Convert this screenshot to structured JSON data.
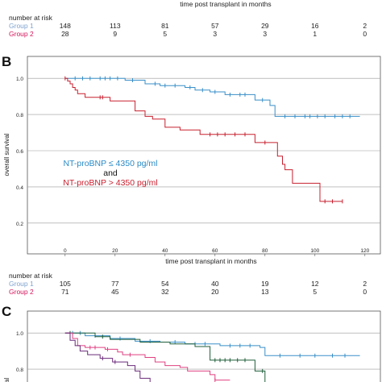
{
  "panel_top": {
    "xlabel": "time post transplant in months",
    "risk_title": "number at risk",
    "risk_rows": [
      {
        "label": "Group 1",
        "color": "#7fa3cf",
        "values": [
          "148",
          "113",
          "81",
          "57",
          "29",
          "16",
          "2"
        ]
      },
      {
        "label": "Group 2",
        "color": "#d4145a",
        "values": [
          "28",
          "9",
          "5",
          "3",
          "3",
          "1",
          "0"
        ]
      }
    ]
  },
  "panel_b": {
    "letter": "B",
    "ylabel": "overall survival",
    "legend_line1": "NT-proBNP ≤ 4350 pg/ml",
    "legend_and": "and",
    "legend_line2": "NT-proBNP > 4350 pg/ml",
    "xlabel": "time post transplant in months",
    "risk_title": "number at risk",
    "risk_rows": [
      {
        "label": "Group 1",
        "color": "#7fa3cf",
        "values": [
          "105",
          "77",
          "54",
          "40",
          "19",
          "12",
          "2"
        ]
      },
      {
        "label": "Group 2",
        "color": "#d4145a",
        "values": [
          "71",
          "45",
          "32",
          "20",
          "13",
          "5",
          "0"
        ]
      }
    ]
  },
  "panel_c": {
    "letter": "C",
    "ylabel": "al"
  },
  "chart_data": [
    {
      "type": "line",
      "title": "B",
      "xlabel": "time post transplant in months",
      "ylabel": "overall survival",
      "xlim": [
        -10,
        125
      ],
      "ylim": [
        0.15,
        1.05
      ],
      "xticks": [
        "0",
        "20",
        "40",
        "60",
        "80",
        "100",
        "120"
      ],
      "yticks": [
        "0.2",
        "0.4",
        "0.6",
        "0.8",
        "1.0"
      ],
      "grid": true,
      "series": [
        {
          "name": "NT-proBNP ≤ 4350 pg/ml",
          "color": "#3a8fc8",
          "steps": [
            [
              0,
              1.0
            ],
            [
              24,
              0.99
            ],
            [
              32,
              0.97
            ],
            [
              38,
              0.96
            ],
            [
              48,
              0.95
            ],
            [
              52,
              0.935
            ],
            [
              58,
              0.925
            ],
            [
              64,
              0.91
            ],
            [
              76,
              0.88
            ],
            [
              82,
              0.85
            ],
            [
              84,
              0.79
            ],
            [
              118,
              0.79
            ]
          ],
          "censors": [
            [
              4,
              1.0
            ],
            [
              7,
              1.0
            ],
            [
              10,
              1.0
            ],
            [
              14,
              1.0
            ],
            [
              16,
              1.0
            ],
            [
              18,
              1.0
            ],
            [
              21,
              1.0
            ],
            [
              27,
              0.99
            ],
            [
              36,
              0.97
            ],
            [
              40,
              0.96
            ],
            [
              44,
              0.96
            ],
            [
              50,
              0.95
            ],
            [
              55,
              0.935
            ],
            [
              60,
              0.925
            ],
            [
              66,
              0.91
            ],
            [
              70,
              0.91
            ],
            [
              72,
              0.91
            ],
            [
              79,
              0.88
            ],
            [
              88,
              0.79
            ],
            [
              92,
              0.79
            ],
            [
              96,
              0.79
            ],
            [
              98,
              0.79
            ],
            [
              101,
              0.79
            ],
            [
              104,
              0.79
            ],
            [
              108,
              0.79
            ],
            [
              111,
              0.79
            ],
            [
              114,
              0.79
            ]
          ]
        },
        {
          "name": "NT-proBNP > 4350 pg/ml",
          "color": "#c8202f",
          "steps": [
            [
              0,
              1.0
            ],
            [
              1,
              0.985
            ],
            [
              2,
              0.97
            ],
            [
              3,
              0.95
            ],
            [
              4,
              0.935
            ],
            [
              5,
              0.915
            ],
            [
              8,
              0.895
            ],
            [
              18,
              0.875
            ],
            [
              28,
              0.82
            ],
            [
              32,
              0.79
            ],
            [
              35,
              0.775
            ],
            [
              40,
              0.73
            ],
            [
              46,
              0.715
            ],
            [
              54,
              0.69
            ],
            [
              76,
              0.645
            ],
            [
              85,
              0.57
            ],
            [
              87,
              0.525
            ],
            [
              88,
              0.495
            ],
            [
              91,
              0.42
            ],
            [
              102,
              0.32
            ],
            [
              111,
              0.32
            ]
          ],
          "censors": [
            [
              0,
              1.0
            ],
            [
              14,
              0.895
            ],
            [
              15,
              0.895
            ],
            [
              58,
              0.69
            ],
            [
              61,
              0.69
            ],
            [
              64,
              0.69
            ],
            [
              68,
              0.69
            ],
            [
              72,
              0.69
            ],
            [
              80,
              0.645
            ],
            [
              104,
              0.32
            ],
            [
              107,
              0.32
            ],
            [
              111,
              0.32
            ]
          ]
        }
      ]
    },
    {
      "type": "line",
      "title": "C",
      "ylabel": "al",
      "xlim": [
        -10,
        125
      ],
      "ylim": [
        0.15,
        1.05
      ],
      "yticks": [
        "0.8",
        "1.0"
      ],
      "grid": true,
      "series": [
        {
          "color": "#3a8fc8",
          "steps": [
            [
              0,
              1.0
            ],
            [
              8,
              0.985
            ],
            [
              18,
              0.97
            ],
            [
              28,
              0.955
            ],
            [
              38,
              0.95
            ],
            [
              48,
              0.94
            ],
            [
              62,
              0.93
            ],
            [
              78,
              0.92
            ],
            [
              80,
              0.875
            ],
            [
              118,
              0.875
            ]
          ],
          "censors": [
            [
              3,
              1.0
            ],
            [
              6,
              1.0
            ],
            [
              12,
              0.985
            ],
            [
              22,
              0.97
            ],
            [
              34,
              0.955
            ],
            [
              44,
              0.95
            ],
            [
              52,
              0.94
            ],
            [
              56,
              0.94
            ],
            [
              66,
              0.93
            ],
            [
              70,
              0.93
            ],
            [
              74,
              0.93
            ],
            [
              86,
              0.875
            ],
            [
              94,
              0.875
            ],
            [
              100,
              0.875
            ],
            [
              107,
              0.875
            ],
            [
              112,
              0.875
            ]
          ]
        },
        {
          "color": "#1f5e3a",
          "steps": [
            [
              0,
              1.0
            ],
            [
              12,
              0.98
            ],
            [
              18,
              0.965
            ],
            [
              30,
              0.95
            ],
            [
              42,
              0.94
            ],
            [
              52,
              0.925
            ],
            [
              58,
              0.85
            ],
            [
              75,
              0.85
            ],
            [
              76,
              0.79
            ],
            [
              80,
              0.65
            ]
          ],
          "censors": [
            [
              2,
              1.0
            ],
            [
              15,
              0.98
            ],
            [
              60,
              0.85
            ],
            [
              62,
              0.85
            ],
            [
              64,
              0.85
            ],
            [
              66,
              0.85
            ],
            [
              69,
              0.85
            ],
            [
              72,
              0.85
            ],
            [
              79,
              0.79
            ]
          ]
        },
        {
          "color": "#e04080",
          "steps": [
            [
              0,
              1.0
            ],
            [
              3,
              0.97
            ],
            [
              5,
              0.93
            ],
            [
              8,
              0.92
            ],
            [
              16,
              0.91
            ],
            [
              21,
              0.895
            ],
            [
              23,
              0.88
            ],
            [
              32,
              0.865
            ],
            [
              36,
              0.84
            ],
            [
              40,
              0.82
            ],
            [
              46,
              0.81
            ],
            [
              49,
              0.79
            ],
            [
              58,
              0.77
            ],
            [
              60,
              0.74
            ],
            [
              66,
              0.74
            ]
          ],
          "censors": [
            [
              10,
              0.92
            ],
            [
              12,
              0.92
            ],
            [
              17,
              0.91
            ],
            [
              26,
              0.88
            ],
            [
              60,
              0.74
            ]
          ]
        },
        {
          "color": "#6a2a7a",
          "steps": [
            [
              0,
              1.0
            ],
            [
              2,
              0.96
            ],
            [
              4,
              0.93
            ],
            [
              6,
              0.9
            ],
            [
              9,
              0.88
            ],
            [
              14,
              0.86
            ],
            [
              19,
              0.84
            ],
            [
              25,
              0.82
            ],
            [
              28,
              0.79
            ],
            [
              30,
              0.75
            ],
            [
              34,
              0.71
            ],
            [
              38,
              0.67
            ]
          ],
          "censors": [
            [
              15,
              0.86
            ],
            [
              20,
              0.84
            ]
          ]
        }
      ]
    }
  ]
}
